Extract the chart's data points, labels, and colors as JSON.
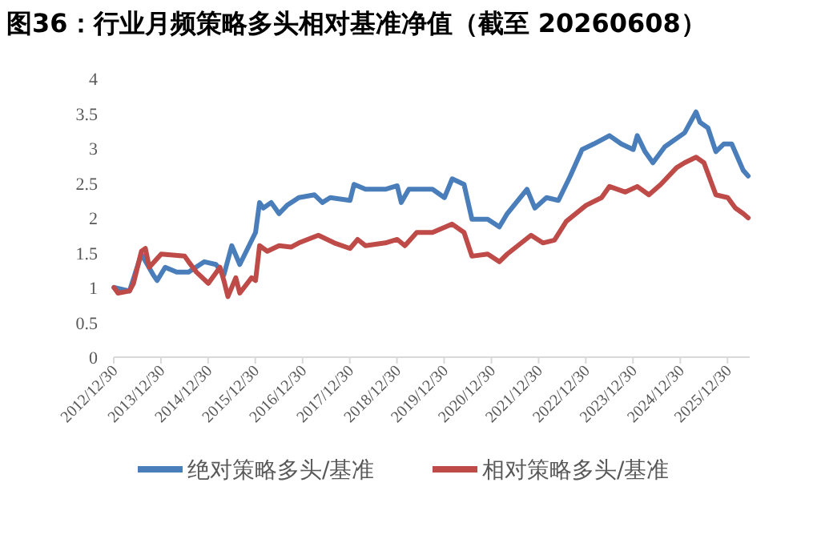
{
  "chart_data": {
    "type": "line",
    "title": "图36：行业月频策略多头相对基准净值（截至 20260608）",
    "xlim": [
      "2012-12-30",
      "2026-06-20"
    ],
    "xticks": [
      {
        "value": "2012-12-30",
        "label": "2012/12/30"
      },
      {
        "value": "2013-12-30",
        "label": "2013/12/30"
      },
      {
        "value": "2014-12-30",
        "label": "2014/12/30"
      },
      {
        "value": "2015-12-30",
        "label": "2015/12/30"
      },
      {
        "value": "2016-12-30",
        "label": "2016/12/30"
      },
      {
        "value": "2017-12-30",
        "label": "2017/12/30"
      },
      {
        "value": "2018-12-30",
        "label": "2018/12/30"
      },
      {
        "value": "2019-12-30",
        "label": "2019/12/30"
      },
      {
        "value": "2020-12-30",
        "label": "2020/12/30"
      },
      {
        "value": "2021-12-30",
        "label": "2021/12/30"
      },
      {
        "value": "2022-12-30",
        "label": "2022/12/30"
      },
      {
        "value": "2023-12-30",
        "label": "2023/12/30"
      },
      {
        "value": "2024-12-30",
        "label": "2024/12/30"
      },
      {
        "value": "2025-12-30",
        "label": "2025/12/30"
      }
    ],
    "ylim": [
      0,
      4
    ],
    "yticks": [
      0,
      0.5,
      1,
      1.5,
      2,
      2.5,
      3,
      3.5,
      4
    ],
    "grid": false,
    "legend": "bottom",
    "marker": "none",
    "line_style": "solid",
    "series": [
      {
        "name": "绝对策略多头/基准",
        "color": "#4a7ebb",
        "x": [
          "2013-01",
          "2013-05",
          "2013-08",
          "2013-11",
          "2013-12",
          "2014-02",
          "2014-05",
          "2014-08",
          "2014-12",
          "2015-03",
          "2015-05",
          "2015-07",
          "2015-09",
          "2015-11",
          "2016-01",
          "2016-02",
          "2016-03",
          "2016-05",
          "2016-07",
          "2016-09",
          "2016-12",
          "2017-04",
          "2017-06",
          "2017-08",
          "2018-01",
          "2018-02",
          "2018-05",
          "2018-10",
          "2019-01",
          "2019-02",
          "2019-04",
          "2019-06",
          "2019-10",
          "2020-01",
          "2020-03",
          "2020-06",
          "2020-08",
          "2020-12",
          "2021-03",
          "2021-05",
          "2021-10",
          "2021-12",
          "2022-03",
          "2022-06",
          "2022-09",
          "2022-12",
          "2023-03",
          "2023-07",
          "2023-10",
          "2024-01",
          "2024-02",
          "2024-04",
          "2024-06",
          "2024-09",
          "2024-12",
          "2025-02",
          "2025-05",
          "2025-06",
          "2025-08",
          "2025-10",
          "2025-12",
          "2026-02",
          "2026-05",
          "2026-06-08"
        ],
        "values": [
          1.0,
          0.95,
          1.48,
          1.18,
          1.1,
          1.29,
          1.22,
          1.22,
          1.37,
          1.33,
          1.18,
          1.6,
          1.33,
          1.56,
          1.79,
          2.22,
          2.14,
          2.22,
          2.06,
          2.18,
          2.29,
          2.33,
          2.22,
          2.29,
          2.25,
          2.48,
          2.41,
          2.41,
          2.46,
          2.22,
          2.41,
          2.41,
          2.41,
          2.29,
          2.56,
          2.48,
          1.98,
          1.98,
          1.87,
          2.06,
          2.41,
          2.14,
          2.29,
          2.25,
          2.6,
          2.98,
          3.06,
          3.18,
          3.06,
          2.98,
          3.18,
          2.95,
          2.79,
          3.02,
          3.14,
          3.22,
          3.52,
          3.37,
          3.29,
          2.95,
          3.06,
          3.06,
          2.68,
          2.6
        ]
      },
      {
        "name": "相对策略多头/基准",
        "color": "#be4b48",
        "x": [
          "2013-01",
          "2013-02",
          "2013-05",
          "2013-06",
          "2013-08",
          "2013-09",
          "2013-10",
          "2014-01",
          "2014-07",
          "2014-08",
          "2014-10",
          "2015-01",
          "2015-04",
          "2015-05",
          "2015-06",
          "2015-08",
          "2015-09",
          "2015-12",
          "2016-01",
          "2016-02",
          "2016-04",
          "2016-07",
          "2016-10",
          "2016-12",
          "2017-05",
          "2017-09",
          "2018-01",
          "2018-03",
          "2018-05",
          "2018-10",
          "2019-01",
          "2019-03",
          "2019-06",
          "2019-10",
          "2020-03",
          "2020-06",
          "2020-08",
          "2020-12",
          "2021-03",
          "2021-05",
          "2021-11",
          "2022-02",
          "2022-05",
          "2022-08",
          "2023-01",
          "2023-05",
          "2023-07",
          "2023-11",
          "2024-02",
          "2024-05",
          "2024-08",
          "2024-12",
          "2025-02",
          "2025-05",
          "2025-07",
          "2025-10",
          "2026-01",
          "2026-03",
          "2026-05",
          "2026-06-08"
        ],
        "values": [
          1.0,
          0.92,
          0.95,
          1.06,
          1.52,
          1.56,
          1.29,
          1.48,
          1.45,
          1.37,
          1.22,
          1.06,
          1.29,
          1.1,
          0.87,
          1.14,
          0.92,
          1.14,
          1.1,
          1.6,
          1.52,
          1.6,
          1.58,
          1.64,
          1.75,
          1.64,
          1.56,
          1.69,
          1.6,
          1.64,
          1.69,
          1.6,
          1.79,
          1.79,
          1.91,
          1.79,
          1.45,
          1.48,
          1.37,
          1.48,
          1.75,
          1.64,
          1.68,
          1.95,
          2.18,
          2.29,
          2.45,
          2.37,
          2.45,
          2.33,
          2.48,
          2.72,
          2.79,
          2.87,
          2.79,
          2.33,
          2.29,
          2.14,
          2.06,
          2.0
        ]
      }
    ]
  }
}
